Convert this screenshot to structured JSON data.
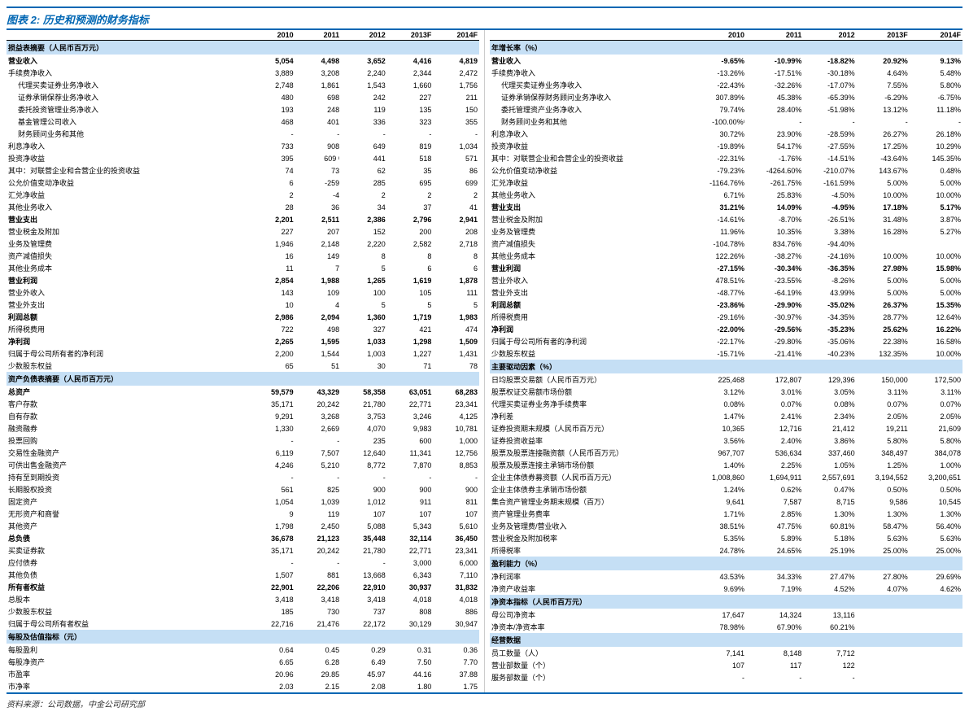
{
  "title": "图表 2: 历史和预测的财务指标",
  "years": [
    "2010",
    "2011",
    "2012",
    "2013F",
    "2014F"
  ],
  "source": "资料来源：公司数据，中金公司研究部",
  "left": [
    {
      "type": "section",
      "label": "损益表摘要（人民币百万元）"
    },
    {
      "label": "营业收入",
      "bold": true,
      "v": [
        "5,054",
        "4,498",
        "3,652",
        "4,416",
        "4,819"
      ]
    },
    {
      "label": "手续费净收入",
      "v": [
        "3,889",
        "3,208",
        "2,240",
        "2,344",
        "2,472"
      ]
    },
    {
      "label": "代理买卖证券业务净收入",
      "indent": 1,
      "v": [
        "2,748",
        "1,861",
        "1,543",
        "1,660",
        "1,756"
      ]
    },
    {
      "label": "证券承销保荐业务净收入",
      "indent": 1,
      "v": [
        "480",
        "698",
        "242",
        "227",
        "211"
      ]
    },
    {
      "label": "委托投资管理业务净收入",
      "indent": 1,
      "v": [
        "193",
        "248",
        "119",
        "135",
        "150"
      ]
    },
    {
      "label": "基金管理公司收入",
      "indent": 1,
      "v": [
        "468",
        "401",
        "336",
        "323",
        "355"
      ]
    },
    {
      "label": "财务顾问业务和其他",
      "indent": 1,
      "v": [
        "-",
        "-",
        "-",
        "-",
        "-"
      ]
    },
    {
      "label": "利息净收入",
      "v": [
        "733",
        "908",
        "649",
        "819",
        "1,034"
      ]
    },
    {
      "label": "投资净收益",
      "v": [
        "395",
        "609 ᶦ",
        "441",
        "518",
        "571"
      ]
    },
    {
      "label": "其中：对联营企业和合营企业的投资收益",
      "v": [
        "74",
        "73",
        "62",
        "35",
        "86"
      ]
    },
    {
      "label": "公允价值变动净收益",
      "v": [
        "6",
        "-259",
        "285",
        "695",
        "699"
      ]
    },
    {
      "label": "汇兑净收益",
      "v": [
        "2",
        "-4",
        "2",
        "2",
        "2"
      ]
    },
    {
      "label": "其他业务收入",
      "v": [
        "28",
        "36",
        "34",
        "37",
        "41"
      ]
    },
    {
      "label": "营业支出",
      "bold": true,
      "v": [
        "2,201",
        "2,511",
        "2,386",
        "2,796",
        "2,941"
      ]
    },
    {
      "label": "营业税金及附加",
      "v": [
        "227",
        "207",
        "152",
        "200",
        "208"
      ]
    },
    {
      "label": "业务及管理费",
      "v": [
        "1,946",
        "2,148",
        "2,220",
        "2,582",
        "2,718"
      ]
    },
    {
      "label": "资产减值损失",
      "v": [
        "16",
        "149",
        "8",
        "8",
        "8"
      ]
    },
    {
      "label": "其他业务成本",
      "v": [
        "11",
        "7",
        "5",
        "6",
        "6"
      ]
    },
    {
      "label": "营业利润",
      "bold": true,
      "v": [
        "2,854",
        "1,988",
        "1,265",
        "1,619",
        "1,878"
      ]
    },
    {
      "label": "营业外收入",
      "v": [
        "143",
        "109",
        "100",
        "105",
        "111"
      ]
    },
    {
      "label": "营业外支出",
      "v": [
        "10",
        "4",
        "5",
        "5",
        "5"
      ]
    },
    {
      "label": "利润总额",
      "bold": true,
      "v": [
        "2,986",
        "2,094",
        "1,360",
        "1,719",
        "1,983"
      ]
    },
    {
      "label": "所得税费用",
      "v": [
        "722",
        "498",
        "327",
        "421",
        "474"
      ]
    },
    {
      "label": "净利润",
      "bold": true,
      "v": [
        "2,265",
        "1,595",
        "1,033",
        "1,298",
        "1,509"
      ]
    },
    {
      "label": "归属于母公司所有者的净利润",
      "v": [
        "2,200",
        "1,544",
        "1,003",
        "1,227",
        "1,431"
      ]
    },
    {
      "label": "少数股东权益",
      "v": [
        "65",
        "51",
        "30",
        "71",
        "78"
      ]
    },
    {
      "type": "section",
      "label": "资产负债表摘要（人民币百万元）"
    },
    {
      "label": "总资产",
      "bold": true,
      "v": [
        "59,579",
        "43,329",
        "58,358",
        "63,051",
        "68,283"
      ]
    },
    {
      "label": "客户存款",
      "v": [
        "35,171",
        "20,242",
        "21,780",
        "22,771",
        "23,341"
      ]
    },
    {
      "label": "自有存款",
      "v": [
        "9,291",
        "3,268",
        "3,753",
        "3,246",
        "4,125"
      ]
    },
    {
      "label": "融资融券",
      "v": [
        "1,330",
        "2,669",
        "4,070",
        "9,983",
        "10,781"
      ]
    },
    {
      "label": "投票回购",
      "v": [
        "-",
        "-",
        "235",
        "600",
        "1,000"
      ]
    },
    {
      "label": "交易性金融资产",
      "v": [
        "6,119",
        "7,507",
        "12,640",
        "11,341",
        "12,756"
      ]
    },
    {
      "label": "可供出售金融资产",
      "v": [
        "4,246",
        "5,210",
        "8,772",
        "7,870",
        "8,853"
      ]
    },
    {
      "label": "持有至到期投资",
      "v": [
        "-",
        "-",
        "-",
        "-",
        "-"
      ]
    },
    {
      "label": "长期股权投资",
      "v": [
        "561",
        "825",
        "900",
        "900",
        "900"
      ]
    },
    {
      "label": "固定资产",
      "v": [
        "1,054",
        "1,039",
        "1,012",
        "911",
        "811"
      ]
    },
    {
      "label": "无形资产和商誉",
      "v": [
        "9",
        "119",
        "107",
        "107",
        "107"
      ]
    },
    {
      "label": "其他资产",
      "v": [
        "1,798",
        "2,450",
        "5,088",
        "5,343",
        "5,610"
      ]
    },
    {
      "label": "总负债",
      "bold": true,
      "v": [
        "36,678",
        "21,123",
        "35,448",
        "32,114",
        "36,450"
      ]
    },
    {
      "label": "买卖证券款",
      "v": [
        "35,171",
        "20,242",
        "21,780",
        "22,771",
        "23,341"
      ]
    },
    {
      "label": "应付债券",
      "v": [
        "-",
        "-",
        "-",
        "3,000",
        "6,000"
      ]
    },
    {
      "label": "其他负债",
      "v": [
        "1,507",
        "881",
        "13,668",
        "6,343",
        "7,110"
      ]
    },
    {
      "label": "所有者权益",
      "bold": true,
      "v": [
        "22,901",
        "22,206",
        "22,910",
        "30,937",
        "31,832"
      ]
    },
    {
      "label": "总股本",
      "v": [
        "3,418",
        "3,418",
        "3,418",
        "4,018",
        "4,018"
      ]
    },
    {
      "label": "少数股东权益",
      "v": [
        "185",
        "730",
        "737",
        "808",
        "886"
      ]
    },
    {
      "label": "归属于母公司所有者权益",
      "v": [
        "22,716",
        "21,476",
        "22,172",
        "30,129",
        "30,947"
      ]
    },
    {
      "type": "section",
      "label": "每股及估值指标（元）"
    },
    {
      "label": "每股盈利",
      "v": [
        "0.64",
        "0.45",
        "0.29",
        "0.31",
        "0.36"
      ]
    },
    {
      "label": "每股净资产",
      "v": [
        "6.65",
        "6.28",
        "6.49",
        "7.50",
        "7.70"
      ]
    },
    {
      "label": "市盈率",
      "v": [
        "20.96",
        "29.85",
        "45.97",
        "44.16",
        "37.88"
      ]
    },
    {
      "label": "市净率",
      "v": [
        "2.03",
        "2.15",
        "2.08",
        "1.80",
        "1.75"
      ]
    }
  ],
  "right": [
    {
      "type": "section",
      "label": "年增长率（%）"
    },
    {
      "label": "营业收入",
      "bold": true,
      "v": [
        "-9.65%",
        "-10.99%",
        "-18.82%",
        "20.92%",
        "9.13%"
      ]
    },
    {
      "label": "手续费净收入",
      "v": [
        "-13.26%",
        "-17.51%",
        "-30.18%",
        "4.64%",
        "5.48%"
      ]
    },
    {
      "label": "代理买卖证券业务净收入",
      "indent": 1,
      "v": [
        "-22.43%",
        "-32.26%",
        "-17.07%",
        "7.55%",
        "5.80%"
      ]
    },
    {
      "label": "证券承销保荐财务顾问业务净收入",
      "indent": 1,
      "v": [
        "307.89%",
        "45.38%",
        "-65.39%",
        "-6.29%",
        "-6.75%"
      ]
    },
    {
      "label": "委托管理资产业务净收入",
      "indent": 1,
      "v": [
        "79.74%",
        "28.40%",
        "-51.98%",
        "13.12%",
        "11.18%"
      ]
    },
    {
      "label": "财务顾问业务和其他",
      "indent": 1,
      "v": [
        "-100.00%ᶦ",
        "-",
        "-",
        "-",
        "-"
      ]
    },
    {
      "label": "利息净收入",
      "v": [
        "30.72%",
        "23.90%",
        "-28.59%",
        "26.27%",
        "26.18%"
      ]
    },
    {
      "label": "投资净收益",
      "v": [
        "-19.89%",
        "54.17%",
        "-27.55%",
        "17.25%",
        "10.29%"
      ]
    },
    {
      "label": "其中：对联营企业和合营企业的投资收益",
      "v": [
        "-22.31%",
        "-1.76%",
        "-14.51%",
        "-43.64%",
        "145.35%"
      ]
    },
    {
      "label": "公允价值变动净收益",
      "v": [
        "-79.23%",
        "-4264.60%",
        "-210.07%",
        "143.67%",
        "0.48%"
      ]
    },
    {
      "label": "汇兑净收益",
      "v": [
        "-1164.76%",
        "-261.75%",
        "-161.59%",
        "5.00%",
        "5.00%"
      ]
    },
    {
      "label": "其他业务收入",
      "v": [
        "6.71%",
        "25.83%",
        "-4.50%",
        "10.00%",
        "10.00%"
      ]
    },
    {
      "label": "营业支出",
      "bold": true,
      "v": [
        "31.21%",
        "14.09%",
        "-4.95%",
        "17.18%",
        "5.17%"
      ]
    },
    {
      "label": "营业税金及附加",
      "v": [
        "-14.61%",
        "-8.70%",
        "-26.51%",
        "31.48%",
        "3.87%"
      ]
    },
    {
      "label": "业务及管理费",
      "v": [
        "11.96%",
        "10.35%",
        "3.38%",
        "16.28%",
        "5.27%"
      ]
    },
    {
      "label": "资产减值损失",
      "v": [
        "-104.78%",
        "834.76%",
        "-94.40%",
        "",
        ""
      ]
    },
    {
      "label": "其他业务成本",
      "v": [
        "122.26%",
        "-38.27%",
        "-24.16%",
        "10.00%",
        "10.00%"
      ]
    },
    {
      "label": "营业利润",
      "bold": true,
      "v": [
        "-27.15%",
        "-30.34%",
        "-36.35%",
        "27.98%",
        "15.98%"
      ]
    },
    {
      "label": "营业外收入",
      "v": [
        "478.51%",
        "-23.55%",
        "-8.26%",
        "5.00%",
        "5.00%"
      ]
    },
    {
      "label": "营业外支出",
      "v": [
        "-48.77%",
        "-64.19%",
        "43.99%",
        "5.00%",
        "5.00%"
      ]
    },
    {
      "label": "利润总额",
      "bold": true,
      "v": [
        "-23.86%",
        "-29.90%",
        "-35.02%",
        "26.37%",
        "15.35%"
      ]
    },
    {
      "label": "所得税费用",
      "v": [
        "-29.16%",
        "-30.97%",
        "-34.35%",
        "28.77%",
        "12.64%"
      ]
    },
    {
      "label": "净利润",
      "bold": true,
      "v": [
        "-22.00%",
        "-29.56%",
        "-35.23%",
        "25.62%",
        "16.22%"
      ]
    },
    {
      "label": "归属于母公司所有者的净利润",
      "v": [
        "-22.17%",
        "-29.80%",
        "-35.06%",
        "22.38%",
        "16.58%"
      ]
    },
    {
      "label": "少数股东权益",
      "v": [
        "-15.71%",
        "-21.41%",
        "-40.23%",
        "132.35%",
        "10.00%"
      ]
    },
    {
      "type": "section",
      "label": "主要驱动因素（%）"
    },
    {
      "label": "日均股票交易额（人民币百万元）",
      "v": [
        "225,468",
        "172,807",
        "129,396",
        "150,000",
        "172,500"
      ]
    },
    {
      "label": "股票权证交易额市场份额",
      "v": [
        "3.12%",
        "3.01%",
        "3.05%",
        "3.11%",
        "3.11%"
      ]
    },
    {
      "label": "代理买卖证券业务净手续费率",
      "v": [
        "0.08%",
        "0.07%",
        "0.08%",
        "0.07%",
        "0.07%"
      ]
    },
    {
      "label": "净利差",
      "v": [
        "1.47%",
        "2.41%",
        "2.34%",
        "2.05%",
        "2.05%"
      ]
    },
    {
      "label": "证券投资期末规模（人民币百万元）",
      "v": [
        "10,365",
        "12,716",
        "21,412",
        "19,211",
        "21,609"
      ]
    },
    {
      "label": "证券投资收益率",
      "v": [
        "3.56%",
        "2.40%",
        "3.86%",
        "5.80%",
        "5.80%"
      ]
    },
    {
      "label": "股票及股票连接融资额（人民币百万元）",
      "v": [
        "967,707",
        "536,634",
        "337,460",
        "348,497",
        "384,078"
      ]
    },
    {
      "label": "股票及股票连接主承销市场份额",
      "v": [
        "1.40%",
        "2.25%",
        "1.05%",
        "1.25%",
        "1.00%"
      ]
    },
    {
      "label": "企业主体债券募资额（人民币百万元）",
      "v": [
        "1,008,860",
        "1,694,911",
        "2,557,691",
        "3,194,552",
        "3,200,651"
      ]
    },
    {
      "label": "企业主体债券主承销市场份额",
      "v": [
        "1.24%",
        "0.62%",
        "0.47%",
        "0.50%",
        "0.50%"
      ]
    },
    {
      "label": "集合资产管理业务期末规模（百万）",
      "v": [
        "9,641",
        "7,587",
        "8,715",
        "9,586",
        "10,545"
      ]
    },
    {
      "label": "资产管理业务费率",
      "v": [
        "1.71%",
        "2.85%",
        "1.30%",
        "1.30%",
        "1.30%"
      ]
    },
    {
      "label": "业务及管理费/营业收入",
      "v": [
        "38.51%",
        "47.75%",
        "60.81%",
        "58.47%",
        "56.40%"
      ]
    },
    {
      "label": "营业税金及附加税率",
      "v": [
        "5.35%",
        "5.89%",
        "5.18%",
        "5.63%",
        "5.63%"
      ]
    },
    {
      "label": "所得税率",
      "v": [
        "24.78%",
        "24.65%",
        "25.19%",
        "25.00%",
        "25.00%"
      ]
    },
    {
      "type": "section",
      "label": "盈利能力（%）"
    },
    {
      "label": "净利润率",
      "v": [
        "43.53%",
        "34.33%",
        "27.47%",
        "27.80%",
        "29.69%"
      ]
    },
    {
      "label": "净资产收益率",
      "v": [
        "9.69%",
        "7.19%",
        "4.52%",
        "4.07%",
        "4.62%"
      ]
    },
    {
      "type": "section",
      "label": "净资本指标（人民币百万元）"
    },
    {
      "label": "母公司净资本",
      "v": [
        "17,647",
        "14,324",
        "13,116",
        "",
        ""
      ]
    },
    {
      "label": "净资本/净资本率",
      "v": [
        "78.98%",
        "67.90%",
        "60.21%",
        "",
        ""
      ]
    },
    {
      "type": "section",
      "label": "经营数据"
    },
    {
      "label": "员工数量（人）",
      "v": [
        "7,141",
        "8,148",
        "7,712",
        "",
        ""
      ]
    },
    {
      "label": "营业部数量（个）",
      "v": [
        "107",
        "117",
        "122",
        "",
        ""
      ]
    },
    {
      "label": "服务部数量（个）",
      "v": [
        "-",
        "-",
        "-",
        "",
        ""
      ]
    }
  ]
}
